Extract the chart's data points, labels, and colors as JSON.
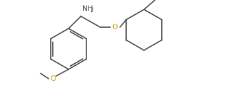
{
  "bg_color": "#ffffff",
  "line_color": "#4a4a4a",
  "text_color_black": "#3a3a3a",
  "text_color_o": "#c8960c",
  "nh2_text": "NH",
  "nh2_sub": "2",
  "o_text": "O",
  "methoxy_o": "O",
  "figsize": [
    3.53,
    1.37
  ],
  "dpi": 100
}
